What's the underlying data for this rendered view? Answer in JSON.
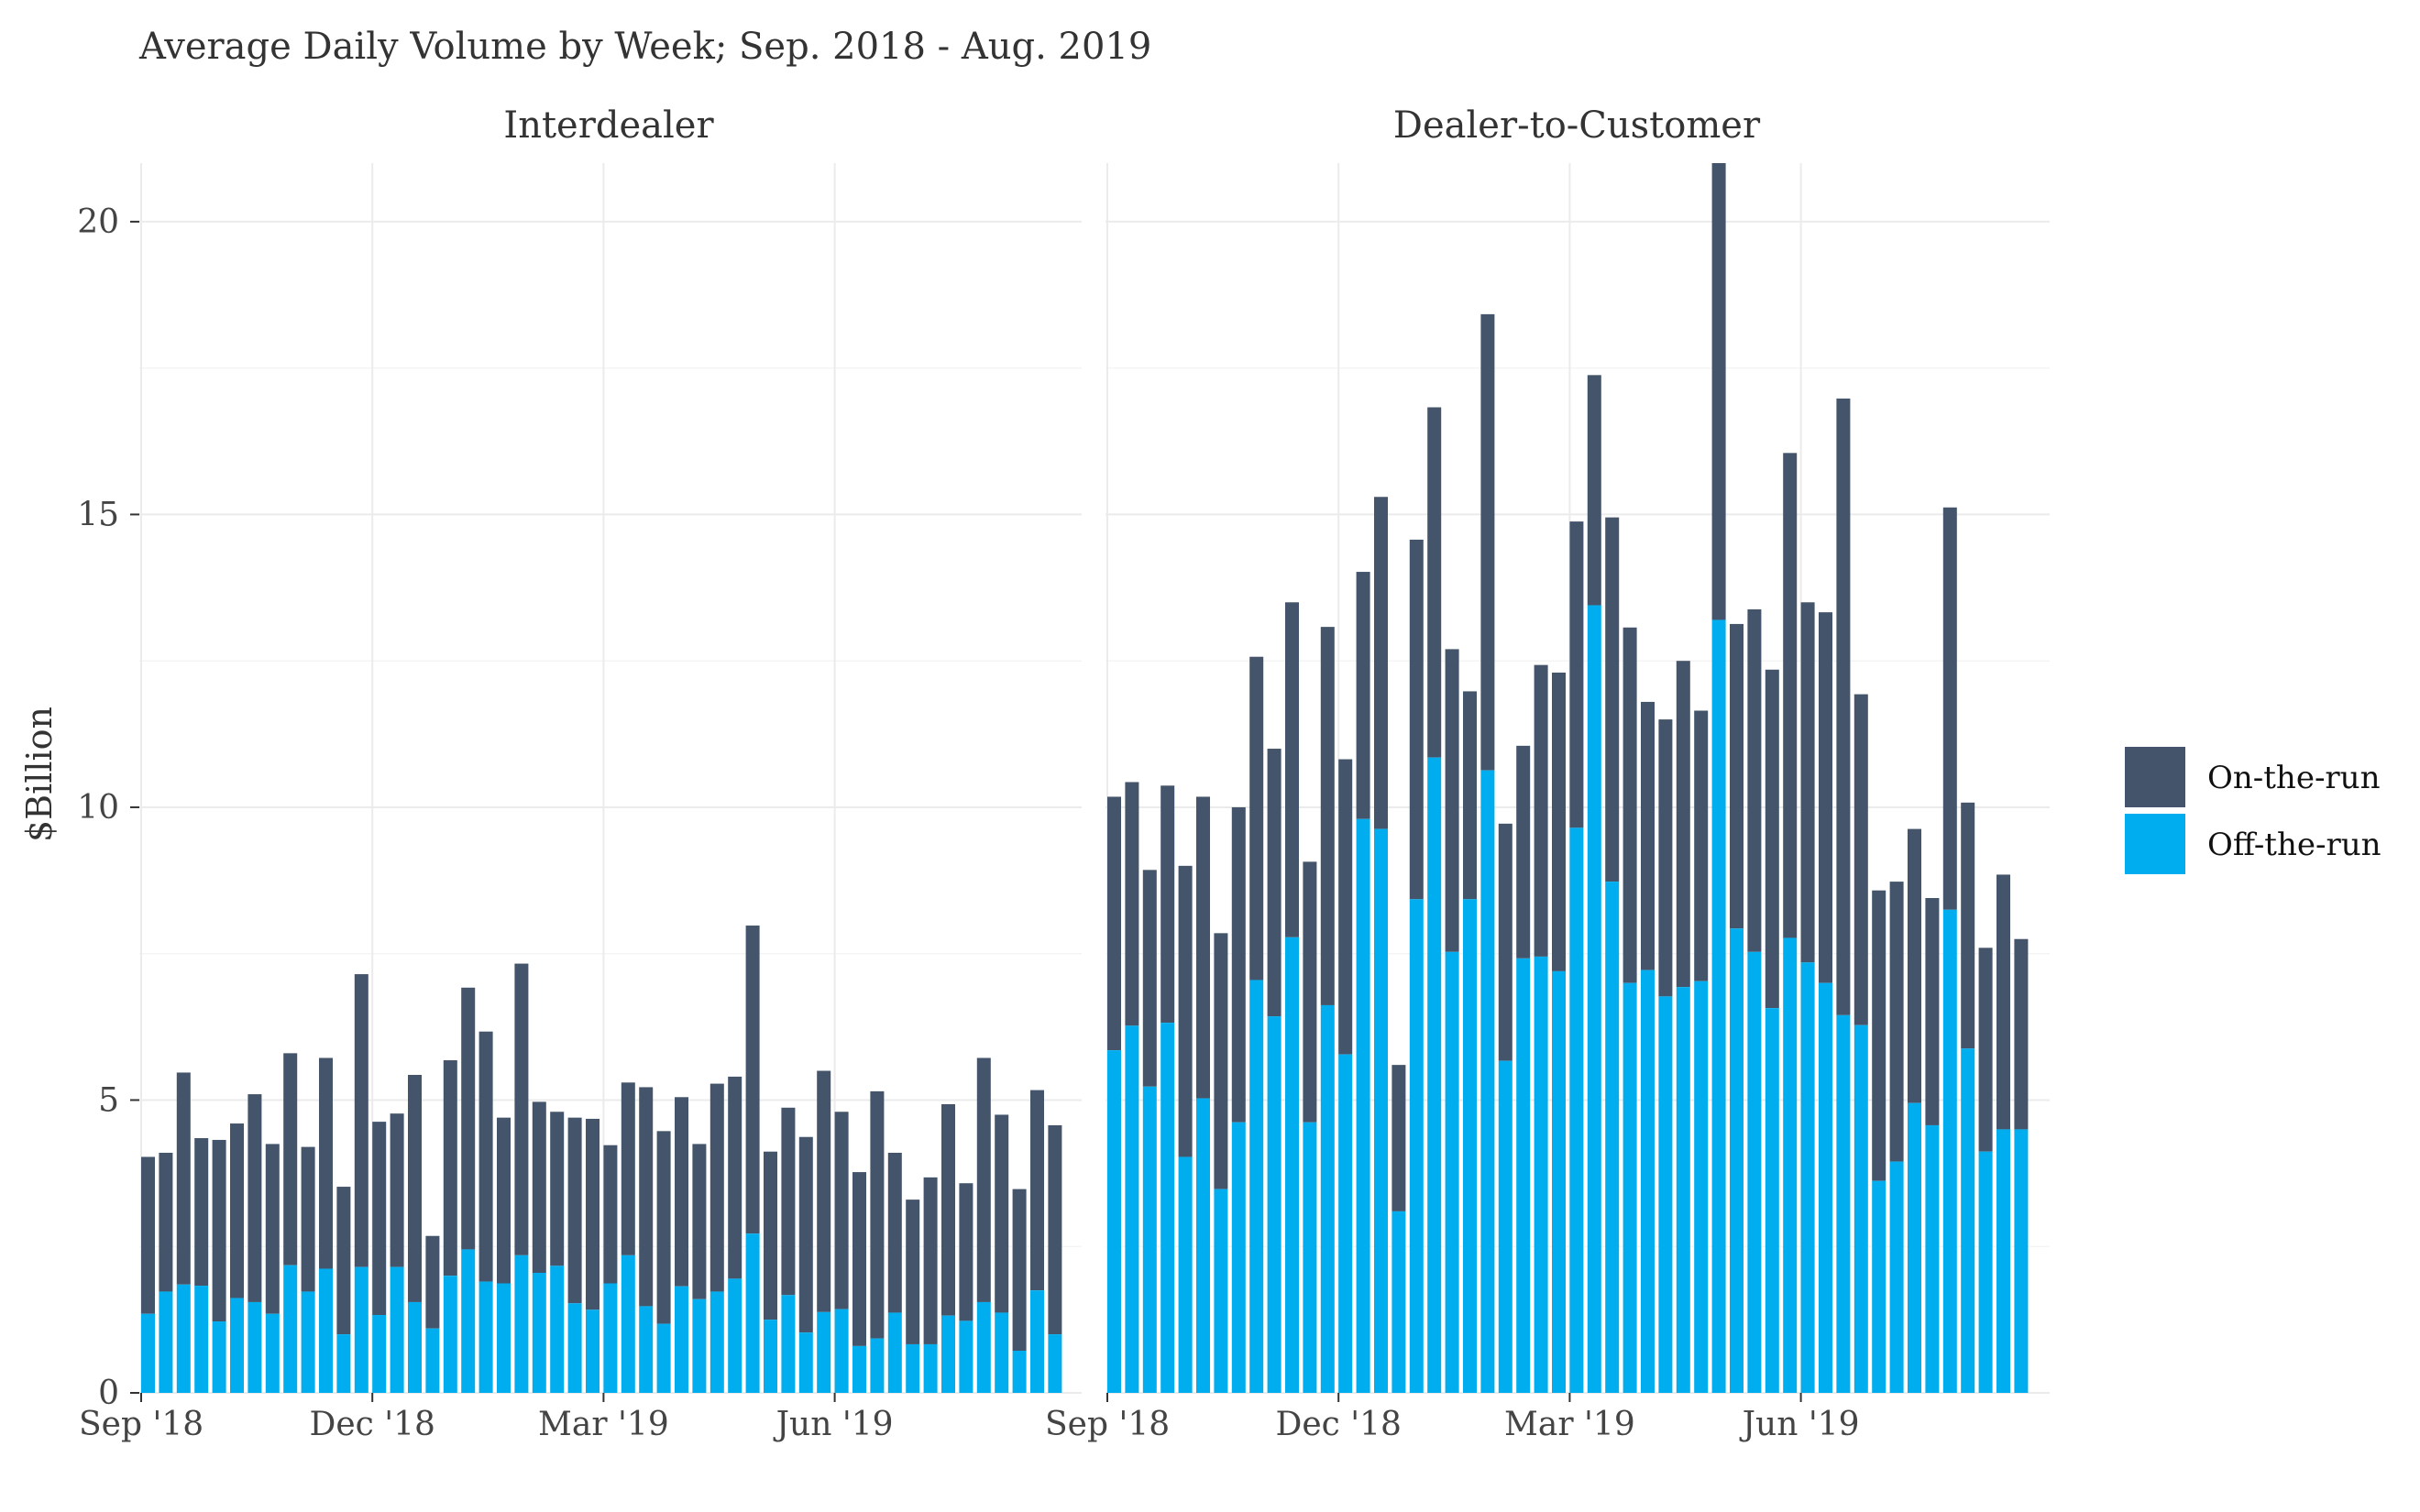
{
  "chart_data": {
    "type": "bar",
    "stacked": true,
    "title": "Average Daily Volume by Week; Sep. 2018 - Aug. 2019",
    "ylabel": "$Billion",
    "ylim": [
      0,
      21
    ],
    "y_ticks": [
      0,
      5,
      10,
      15,
      20
    ],
    "x_tick_labels": [
      "Sep '18",
      "Dec '18",
      "Mar '19",
      "Jun '19"
    ],
    "legend": {
      "position": "right",
      "items": [
        {
          "name": "On-the-run",
          "color": "#44546a"
        },
        {
          "name": "Off-the-run",
          "color": "#00aeef"
        }
      ]
    },
    "series_colors": {
      "on_the_run": "#44546a",
      "off_the_run": "#00aeef"
    },
    "panels": [
      {
        "name": "Interdealer",
        "weeks": 52,
        "off_the_run": [
          1.35,
          1.73,
          1.85,
          1.83,
          1.22,
          1.62,
          1.55,
          1.35,
          2.18,
          1.73,
          2.12,
          1.0,
          2.15,
          1.33,
          2.15,
          1.55,
          1.1,
          2.0,
          2.45,
          1.9,
          1.87,
          2.35,
          2.05,
          2.17,
          1.53,
          1.42,
          1.87,
          2.35,
          1.48,
          1.18,
          1.82,
          1.6,
          1.73,
          1.95,
          2.72,
          1.25,
          1.67,
          1.03,
          1.38,
          1.43,
          0.8,
          0.93,
          1.37,
          0.83,
          0.83,
          1.32,
          1.23,
          1.55,
          1.37,
          0.72,
          1.75,
          1.0
        ],
        "total": [
          4.03,
          4.1,
          5.47,
          4.35,
          4.32,
          4.6,
          5.1,
          4.25,
          5.8,
          4.2,
          5.72,
          3.52,
          7.15,
          4.63,
          4.77,
          5.43,
          2.68,
          5.68,
          6.92,
          6.17,
          4.7,
          7.33,
          4.97,
          4.8,
          4.7,
          4.68,
          4.23,
          5.3,
          5.22,
          4.47,
          5.05,
          4.25,
          5.28,
          5.4,
          7.98,
          4.12,
          4.87,
          4.37,
          5.5,
          4.8,
          3.77,
          5.15,
          4.1,
          3.3,
          3.68,
          4.93,
          3.58,
          5.72,
          4.75,
          3.48,
          5.17,
          4.57
        ]
      },
      {
        "name": "Dealer-to-Customer",
        "weeks": 52,
        "off_the_run": [
          5.85,
          6.27,
          5.23,
          6.32,
          4.03,
          5.03,
          3.48,
          4.62,
          7.05,
          6.43,
          7.78,
          4.62,
          6.62,
          5.78,
          9.8,
          9.63,
          3.1,
          8.43,
          10.85,
          7.53,
          8.43,
          10.63,
          5.67,
          7.42,
          7.45,
          7.2,
          9.65,
          13.45,
          8.73,
          7.0,
          7.22,
          6.77,
          6.93,
          7.03,
          13.2,
          7.93,
          7.53,
          6.57,
          7.77,
          7.35,
          7.0,
          6.45,
          6.28,
          3.62,
          3.95,
          4.95,
          4.57,
          8.25,
          5.88,
          4.12,
          4.5,
          4.5
        ],
        "total": [
          10.18,
          10.43,
          8.93,
          10.37,
          9.0,
          10.18,
          7.85,
          10.0,
          12.57,
          11.0,
          13.5,
          9.07,
          13.08,
          10.82,
          14.02,
          15.3,
          5.6,
          14.57,
          16.83,
          12.7,
          11.98,
          18.42,
          9.72,
          11.05,
          12.43,
          12.3,
          14.88,
          17.38,
          14.95,
          13.07,
          11.8,
          11.5,
          12.5,
          11.65,
          21.0,
          13.13,
          13.38,
          12.35,
          16.05,
          13.5,
          13.33,
          16.98,
          11.93,
          8.58,
          8.73,
          9.63,
          8.45,
          15.12,
          10.08,
          7.6,
          8.85,
          7.75
        ]
      }
    ]
  }
}
